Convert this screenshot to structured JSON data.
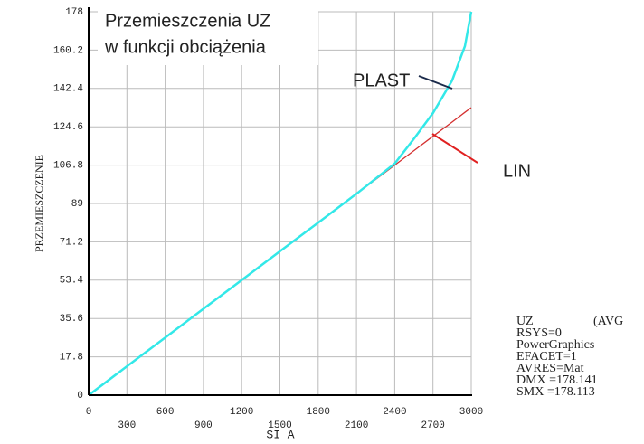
{
  "chart_data": {
    "type": "line",
    "title": [
      "Przemieszczenia UZ",
      "w funkcji obciążenia"
    ],
    "xlabel": "SI A",
    "ylabel": "PRZEMIESZCZENIE",
    "x": [
      0,
      300,
      600,
      900,
      1200,
      1500,
      1800,
      2100,
      2400,
      2550,
      2700,
      2850,
      2950,
      3000
    ],
    "series": [
      {
        "name": "PLAST",
        "color": "#33e8e8",
        "label_color": "#1f6fc0",
        "values": [
          0,
          13.4,
          26.7,
          40.1,
          53.4,
          66.8,
          80.1,
          93.5,
          107.5,
          119,
          131,
          146,
          162,
          178
        ]
      },
      {
        "name": "LIN",
        "color": "#d43030",
        "label_color": "#e02020",
        "values": [
          0,
          13.4,
          26.7,
          40.1,
          53.4,
          66.8,
          80.1,
          93.5,
          106.8,
          113.5,
          120.2,
          126.8,
          131.3,
          133.5
        ]
      }
    ],
    "xlim": [
      0,
      3000
    ],
    "xticks": [
      0,
      300,
      600,
      900,
      1200,
      1500,
      1800,
      2100,
      2400,
      2700,
      3000
    ],
    "ylim": [
      0,
      178
    ],
    "yticks": [
      0,
      17.8,
      35.6,
      53.4,
      71.2,
      89,
      106.8,
      124.6,
      142.4,
      160.2,
      178
    ],
    "grid": true,
    "info": [
      "UZ",
      "(AVG",
      "RSYS=0",
      "PowerGraphics",
      "EFACET=1",
      "AVRES=Mat",
      "DMX =178.141",
      "SMX =178.113"
    ]
  }
}
